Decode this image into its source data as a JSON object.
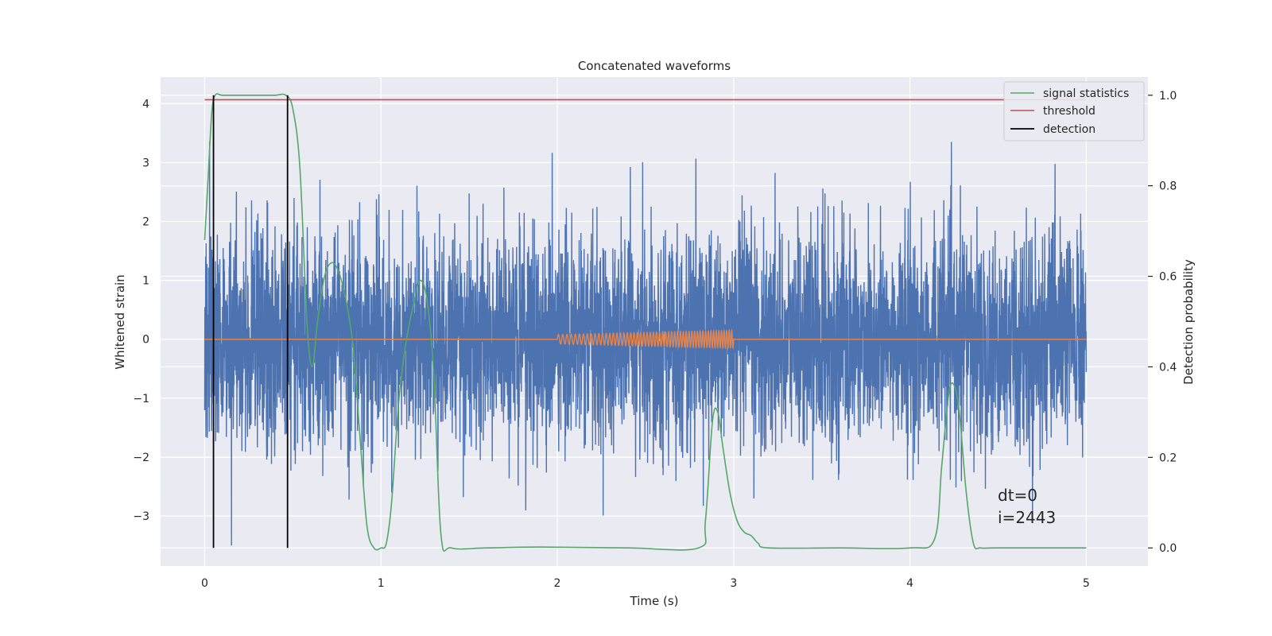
{
  "chart_data": {
    "type": "line",
    "title": "Concatenated waveforms",
    "xlabel": "Time (s)",
    "ylabel": "Whitened strain",
    "ylabel_right": "Detection probability",
    "xlim": [
      -0.25,
      5.35
    ],
    "ylim": [
      -3.85,
      4.45
    ],
    "ylim_right": [
      -0.04,
      1.04
    ],
    "x_ticks": [
      0,
      1,
      2,
      3,
      4,
      5
    ],
    "x_tick_labels": [
      "0",
      "1",
      "2",
      "3",
      "4",
      "5"
    ],
    "y_ticks": [
      -3,
      -2,
      -1,
      0,
      1,
      2,
      3,
      4
    ],
    "y_tick_labels": [
      "−3",
      "−2",
      "−1",
      "0",
      "1",
      "2",
      "3",
      "4"
    ],
    "y_right_ticks": [
      0.0,
      0.2,
      0.4,
      0.6,
      0.8,
      1.0
    ],
    "y_right_tick_labels": [
      "0.0",
      "0.2",
      "0.4",
      "0.6",
      "0.8",
      "1.0"
    ],
    "grid": true,
    "legend_position": "top-right",
    "colors": {
      "background": "#eaeaf2",
      "grid": "#ffffff",
      "strain": "#4c72b0",
      "injection": "#dd8452",
      "signal_statistics": "#55a868",
      "threshold": "#c44e52",
      "detection": "#000000"
    },
    "series": [
      {
        "name": "signal statistics",
        "axis": "right",
        "x": [
          0.0,
          0.02,
          0.04,
          0.06,
          0.1,
          0.2,
          0.3,
          0.4,
          0.46,
          0.5,
          0.54,
          0.58,
          0.61,
          0.64,
          0.68,
          0.72,
          0.76,
          0.8,
          0.84,
          0.88,
          0.92,
          0.96,
          1.0,
          1.03,
          1.06,
          1.1,
          1.14,
          1.18,
          1.22,
          1.26,
          1.3,
          1.34,
          1.4,
          1.6,
          1.9,
          2.4,
          2.8,
          2.84,
          2.88,
          2.91,
          2.94,
          2.98,
          3.02,
          3.06,
          3.1,
          3.14,
          3.2,
          3.6,
          4.0,
          4.14,
          4.18,
          4.22,
          4.25,
          4.28,
          4.32,
          4.36,
          4.4,
          4.5,
          5.0
        ],
        "y": [
          0.68,
          0.82,
          0.96,
          1.0,
          1.0,
          1.0,
          1.0,
          1.0,
          1.0,
          0.97,
          0.84,
          0.5,
          0.4,
          0.5,
          0.6,
          0.63,
          0.61,
          0.55,
          0.45,
          0.25,
          0.05,
          0.0,
          0.0,
          0.01,
          0.1,
          0.32,
          0.45,
          0.53,
          0.59,
          0.55,
          0.38,
          0.03,
          0.0,
          0.0,
          0.002,
          0.0,
          0.0,
          0.06,
          0.28,
          0.3,
          0.22,
          0.12,
          0.06,
          0.035,
          0.027,
          0.01,
          0.0,
          0.0,
          0.0,
          0.02,
          0.18,
          0.34,
          0.36,
          0.3,
          0.12,
          0.01,
          0.0,
          0.0,
          0.0
        ]
      },
      {
        "name": "threshold",
        "axis": "right",
        "x": [
          0,
          5
        ],
        "y": [
          0.99,
          0.99
        ]
      },
      {
        "name": "detection",
        "axis": "right",
        "type": "vlines",
        "x": [
          0.05,
          0.47
        ],
        "y": [
          0.0,
          1.0
        ]
      },
      {
        "axis": "left",
        "note_only_drawn": "whitened strain noise",
        "x_range": [
          0,
          5
        ],
        "amplitude_sigma": 0.9,
        "min": -3.5,
        "max": 3.35,
        "points": 5000
      },
      {
        "axis": "left",
        "note_only_drawn": "injected chirp",
        "x_range": [
          0,
          5
        ],
        "chirp_x_range": [
          2.0,
          3.0
        ],
        "chirp_amplitude_start": 0.08,
        "chirp_amplitude_end": 0.15
      }
    ],
    "annotations": [
      "dt=0",
      "i=2443"
    ]
  }
}
